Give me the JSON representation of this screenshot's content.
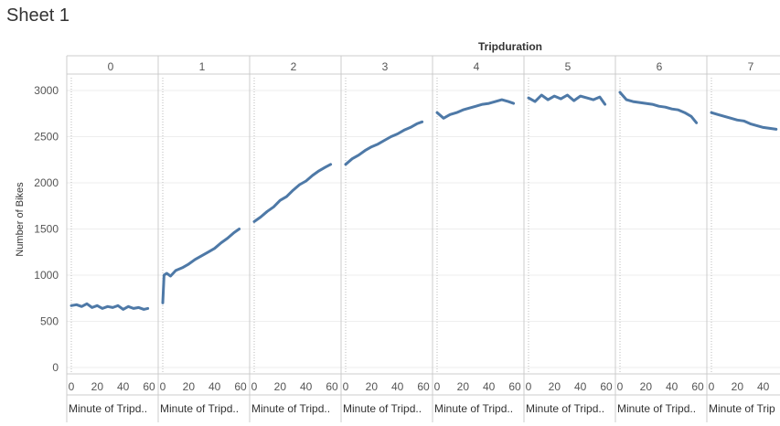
{
  "sheet": {
    "title": "Sheet 1"
  },
  "chart_data": {
    "type": "line",
    "title": "",
    "column_header": "Tripduration",
    "panels": [
      "0",
      "1",
      "2",
      "3",
      "4",
      "5",
      "6",
      "7"
    ],
    "ylabel": "Number of Bikes",
    "xlabel": "Minute of Tripd..",
    "xlabel_last": "Minute of Trip",
    "ylim": [
      0,
      3200
    ],
    "yticks": [
      0,
      500,
      1000,
      1500,
      2000,
      2500,
      3000
    ],
    "xlim": [
      0,
      60
    ],
    "xticks": [
      0,
      20,
      40,
      60
    ],
    "grid": true,
    "color": "#4e79a7",
    "series": [
      {
        "panel": "0",
        "x": [
          0,
          4,
          8,
          12,
          16,
          20,
          24,
          28,
          32,
          36,
          40,
          44,
          48,
          52,
          56,
          59
        ],
        "y": [
          670,
          680,
          660,
          690,
          650,
          670,
          640,
          660,
          650,
          670,
          630,
          660,
          640,
          650,
          630,
          640
        ]
      },
      {
        "panel": "1",
        "x": [
          0,
          1,
          3,
          6,
          10,
          15,
          20,
          25,
          30,
          35,
          40,
          45,
          50,
          55,
          59
        ],
        "y": [
          700,
          1000,
          1020,
          990,
          1050,
          1080,
          1120,
          1170,
          1210,
          1250,
          1290,
          1350,
          1400,
          1460,
          1500
        ]
      },
      {
        "panel": "2",
        "x": [
          0,
          5,
          10,
          15,
          20,
          25,
          30,
          35,
          40,
          45,
          50,
          55,
          59
        ],
        "y": [
          1580,
          1630,
          1690,
          1740,
          1810,
          1850,
          1920,
          1980,
          2020,
          2080,
          2130,
          2170,
          2200
        ]
      },
      {
        "panel": "3",
        "x": [
          0,
          5,
          10,
          15,
          20,
          25,
          30,
          35,
          40,
          45,
          50,
          55,
          59
        ],
        "y": [
          2200,
          2260,
          2300,
          2350,
          2390,
          2420,
          2460,
          2500,
          2530,
          2570,
          2600,
          2640,
          2660
        ]
      },
      {
        "panel": "4",
        "x": [
          0,
          5,
          10,
          15,
          20,
          25,
          30,
          35,
          40,
          45,
          50,
          55,
          59
        ],
        "y": [
          2760,
          2700,
          2740,
          2760,
          2790,
          2810,
          2830,
          2850,
          2860,
          2880,
          2900,
          2880,
          2860
        ]
      },
      {
        "panel": "5",
        "x": [
          0,
          5,
          10,
          15,
          20,
          25,
          30,
          35,
          40,
          45,
          50,
          55,
          59
        ],
        "y": [
          2920,
          2880,
          2950,
          2900,
          2940,
          2910,
          2950,
          2890,
          2940,
          2920,
          2900,
          2930,
          2850
        ]
      },
      {
        "panel": "6",
        "x": [
          0,
          5,
          10,
          15,
          20,
          25,
          30,
          35,
          40,
          45,
          50,
          55,
          59
        ],
        "y": [
          2980,
          2900,
          2880,
          2870,
          2860,
          2850,
          2830,
          2820,
          2800,
          2790,
          2760,
          2720,
          2650
        ]
      },
      {
        "panel": "7",
        "x": [
          0,
          5,
          10,
          15,
          20,
          25,
          30,
          35,
          40,
          45,
          50
        ],
        "y": [
          2760,
          2740,
          2720,
          2700,
          2680,
          2670,
          2640,
          2620,
          2600,
          2590,
          2580
        ]
      }
    ]
  }
}
